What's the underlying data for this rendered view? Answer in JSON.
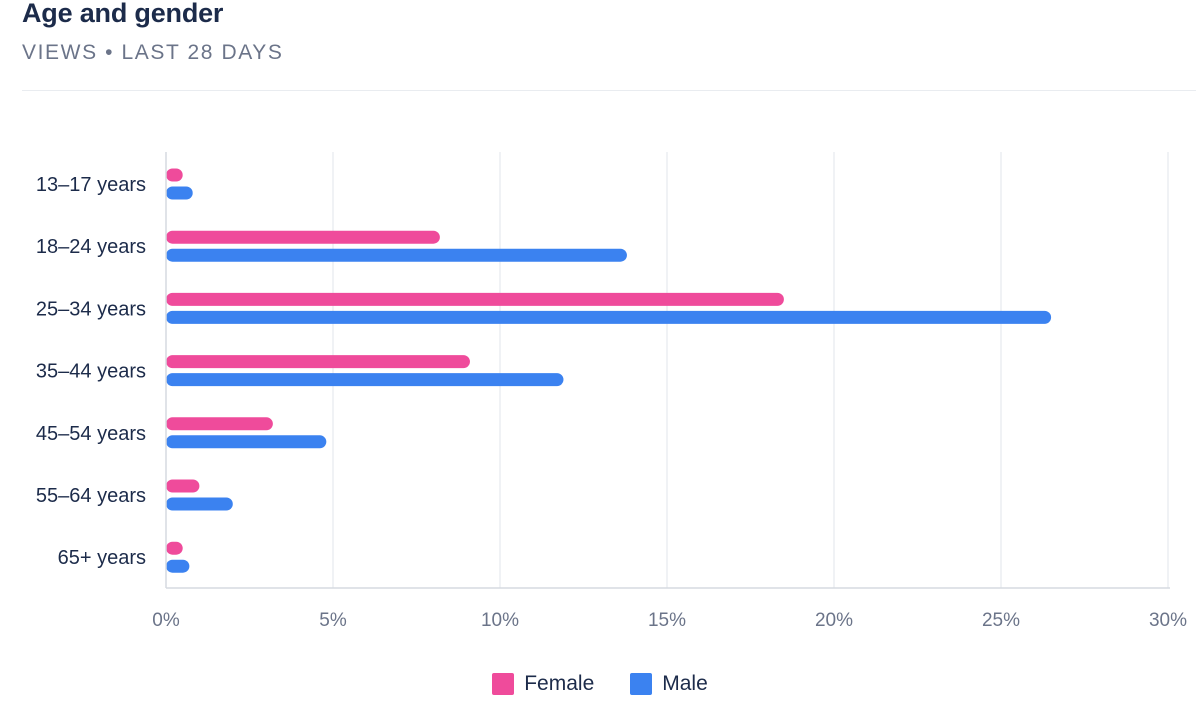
{
  "header": {
    "title": "Age and gender",
    "subtitle": "VIEWS • LAST 28 DAYS"
  },
  "chart_data": {
    "type": "bar",
    "orientation": "horizontal",
    "categories": [
      "13–17 years",
      "18–24 years",
      "25–34 years",
      "35–44 years",
      "45–54 years",
      "55–64 years",
      "65+ years"
    ],
    "series": [
      {
        "name": "Female",
        "color": "#ef4b9b",
        "values": [
          0.5,
          8.2,
          18.5,
          9.1,
          3.2,
          1.0,
          0.5
        ]
      },
      {
        "name": "Male",
        "color": "#3b82f0",
        "values": [
          0.8,
          13.8,
          26.5,
          11.9,
          4.8,
          2.0,
          0.7
        ]
      }
    ],
    "xlim": [
      0,
      30
    ],
    "xticks": [
      0,
      5,
      10,
      15,
      20,
      25,
      30
    ],
    "xtick_labels": [
      "0%",
      "5%",
      "10%",
      "15%",
      "20%",
      "25%",
      "30%"
    ],
    "grid": "vertical",
    "legend": "bottom-center"
  }
}
